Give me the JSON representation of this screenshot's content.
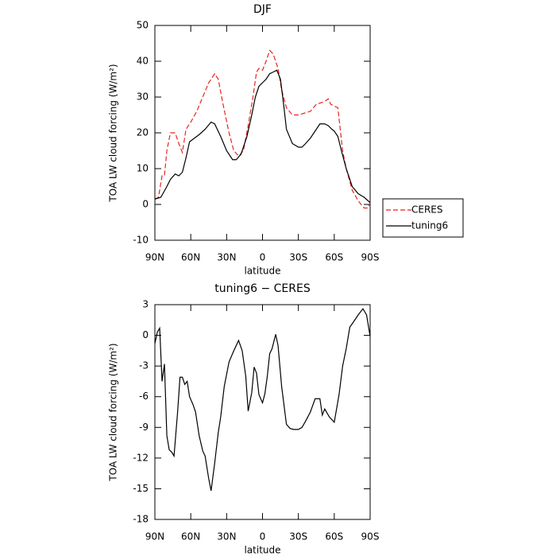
{
  "chart_data": [
    {
      "type": "line",
      "title": "DJF",
      "xlabel": "latitude",
      "ylabel": "TOA LW cloud forcing (W/m²)",
      "xlim": [
        90,
        -90
      ],
      "ylim": [
        -10,
        50
      ],
      "xticks": [
        {
          "value": 90,
          "label": "90N"
        },
        {
          "value": 60,
          "label": "60N"
        },
        {
          "value": 30,
          "label": "30N"
        },
        0,
        {
          "value": -30,
          "label": "30S"
        },
        {
          "value": -60,
          "label": "60S"
        },
        {
          "value": -90,
          "label": "90S"
        }
      ],
      "yticks": [
        -10,
        0,
        10,
        20,
        30,
        40,
        50
      ],
      "legend": "right",
      "series": [
        {
          "name": "CERES",
          "color": "#e8251f",
          "dash": true,
          "x": [
            90,
            87,
            84,
            82,
            80,
            77,
            73,
            70,
            67,
            64,
            60,
            55,
            50,
            45,
            40,
            37,
            33,
            28,
            24,
            20,
            16,
            12,
            8,
            5,
            3,
            0,
            -3,
            -6,
            -9,
            -13,
            -16,
            -20,
            -25,
            -30,
            -35,
            -40,
            -45,
            -50,
            -53,
            -55,
            -57,
            -60,
            -63,
            -67,
            -70,
            -75,
            -80,
            -85,
            -88,
            -90
          ],
          "values": [
            1.5,
            2,
            8,
            8,
            15,
            20,
            20,
            17,
            14.5,
            21,
            23,
            26,
            30,
            34,
            36.5,
            35,
            28,
            20,
            15,
            13.5,
            15,
            22,
            30,
            37,
            38,
            37.5,
            40,
            43,
            42,
            38,
            32,
            27,
            25,
            25,
            25.5,
            26,
            28,
            28.5,
            29,
            29.5,
            28,
            27.5,
            27,
            15,
            10,
            4,
            1,
            -1,
            -1,
            0.5
          ]
        },
        {
          "name": "tuning6",
          "color": "#000000",
          "dash": false,
          "x": [
            90,
            85,
            80,
            77,
            73,
            70,
            67,
            64,
            61,
            57,
            53,
            48,
            43,
            40,
            35,
            30,
            25,
            22,
            18,
            13,
            9,
            6,
            3,
            0,
            -3,
            -6,
            -9,
            -12,
            -15,
            -18,
            -20,
            -25,
            -30,
            -33,
            -36,
            -40,
            -45,
            -48,
            -52,
            -55,
            -58,
            -60,
            -63,
            -66,
            -70,
            -75,
            -80,
            -85,
            -90
          ],
          "values": [
            1.5,
            2,
            5,
            7,
            8.5,
            8,
            9,
            13,
            17.5,
            18.5,
            19.5,
            21,
            23,
            22.5,
            19,
            15,
            12.5,
            12.5,
            14,
            19,
            25,
            30,
            33,
            34,
            35,
            36.5,
            37,
            37.5,
            35,
            27,
            21,
            17,
            16,
            16,
            17,
            18.5,
            21,
            22.5,
            22.5,
            22,
            21,
            20.5,
            19,
            15,
            10,
            5,
            3,
            2,
            0.5
          ]
        }
      ]
    },
    {
      "type": "line",
      "title": "tuning6 − CERES",
      "xlabel": "latitude",
      "ylabel": "TOA LW cloud forcing (W/m²)",
      "xlim": [
        90,
        -90
      ],
      "ylim": [
        -18,
        3
      ],
      "xticks": [
        {
          "value": 90,
          "label": "90N"
        },
        {
          "value": 60,
          "label": "60N"
        },
        {
          "value": 30,
          "label": "30N"
        },
        0,
        {
          "value": -30,
          "label": "30S"
        },
        {
          "value": -60,
          "label": "60S"
        },
        {
          "value": -90,
          "label": "90S"
        }
      ],
      "yticks": [
        -18,
        -15,
        -12,
        -9,
        -6,
        -3,
        0,
        3
      ],
      "color": "#000000",
      "x": [
        90,
        88,
        86,
        84,
        82,
        80,
        78,
        76,
        74,
        71,
        69,
        67,
        65,
        63,
        61,
        58,
        56,
        53,
        50,
        48,
        45,
        43,
        40,
        37,
        35,
        32,
        28,
        24,
        20,
        17,
        14,
        12,
        9,
        7,
        5,
        3,
        0,
        -2,
        -4,
        -6,
        -8,
        -11,
        -13,
        -16,
        -20,
        -23,
        -26,
        -30,
        -33,
        -36,
        -40,
        -44,
        -48,
        -50,
        -52,
        -56,
        -60,
        -64,
        -67,
        -70,
        -73,
        -76,
        -80,
        -84,
        -87,
        -90
      ],
      "values": [
        -0.8,
        0.3,
        0.7,
        -4.5,
        -2.8,
        -9.8,
        -11.2,
        -11.4,
        -11.8,
        -7.5,
        -4.1,
        -4.1,
        -4.8,
        -4.5,
        -6,
        -6.8,
        -7.5,
        -9.8,
        -11.3,
        -11.8,
        -14,
        -15.2,
        -12.5,
        -9.5,
        -8,
        -5,
        -2.6,
        -1.5,
        -0.5,
        -1.5,
        -4,
        -7.4,
        -5.6,
        -3.1,
        -3.7,
        -5.8,
        -6.6,
        -5.7,
        -4,
        -1.8,
        -1.3,
        0.1,
        -1,
        -5,
        -8.7,
        -9.1,
        -9.2,
        -9.2,
        -9,
        -8.4,
        -7.5,
        -6.2,
        -6.2,
        -7.8,
        -7.2,
        -8,
        -8.5,
        -5.8,
        -3,
        -1.3,
        0.8,
        1.3,
        2,
        2.6,
        2,
        -0.1
      ]
    }
  ]
}
